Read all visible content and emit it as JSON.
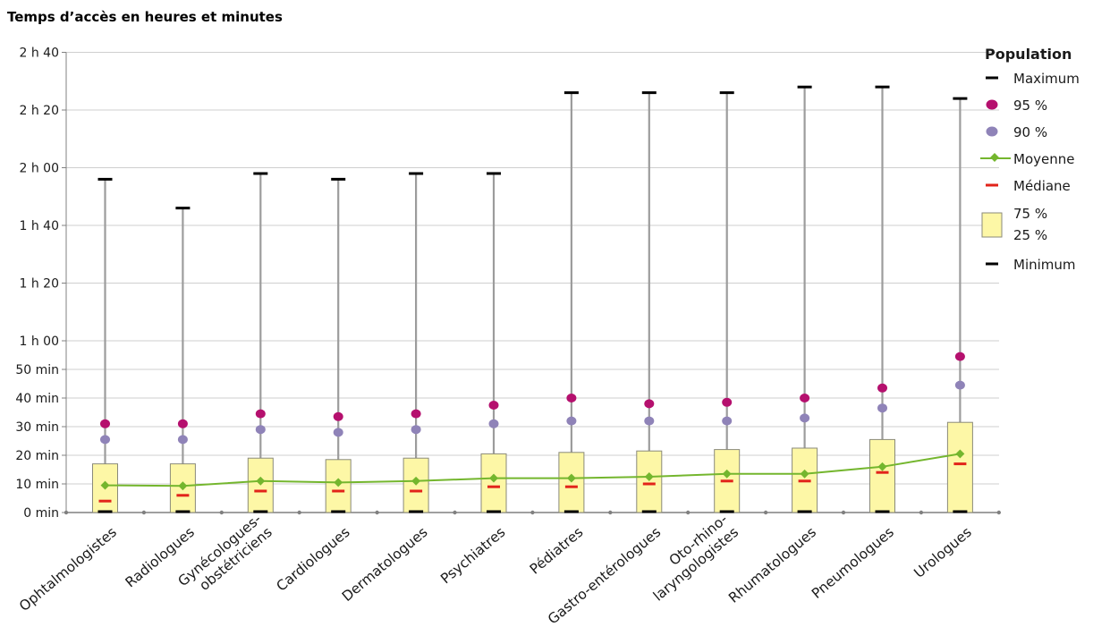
{
  "chart_data": {
    "type": "boxplot",
    "title": "Temps d’accès en heures et minutes",
    "ylabel": "",
    "xlabel": "",
    "ylim": [
      0,
      160
    ],
    "y_ticks": [
      0,
      10,
      20,
      30,
      40,
      50,
      60,
      80,
      100,
      120,
      140,
      160
    ],
    "y_tick_labels": [
      "0 min",
      "10 min",
      "20 min",
      "30 min",
      "40 min",
      "50 min",
      "1 h 00",
      "1 h 20",
      "1 h 40",
      "2 h 00",
      "2 h 20",
      "2 h 40"
    ],
    "grid": true,
    "legend_position": "right",
    "legend": {
      "title": "Population",
      "items": {
        "max": "Maximum",
        "p95": "95 %",
        "p90": "90 %",
        "mean": "Moyenne",
        "median": "Médiane",
        "p75": "75 %",
        "p25": "25 %",
        "min": "Minimum"
      }
    },
    "colors": {
      "whisker": "#9c9c9c",
      "box_fill": "#fdf7a6",
      "box_stroke": "#8a8a7a",
      "mean": "#74b62e",
      "median": "#e2231a",
      "p95": "#b5106e",
      "p90": "#8f83b8",
      "minmax": "#000000",
      "grid": "#cfcfcf"
    },
    "categories": [
      [
        "Ophtalmologistes"
      ],
      [
        "Radiologues"
      ],
      [
        "Gynécologues-",
        "obstétriciens"
      ],
      [
        "Cardiologues"
      ],
      [
        "Dermatologues"
      ],
      [
        "Psychiatres"
      ],
      [
        "Pédiatres"
      ],
      [
        "Gastro-entérologues"
      ],
      [
        "Oto-rhino-",
        "laryngologistes"
      ],
      [
        "Rhumatologues"
      ],
      [
        "Pneumologues"
      ],
      [
        "Urologues"
      ]
    ],
    "series": {
      "min": [
        0,
        0,
        0,
        0,
        0,
        0,
        0,
        0,
        0,
        0,
        0,
        0
      ],
      "p25": [
        0,
        0,
        0,
        0,
        0,
        0,
        0,
        0,
        0,
        0,
        0,
        0
      ],
      "median": [
        4,
        6,
        7.5,
        7.5,
        7.5,
        9,
        9,
        10,
        11,
        11,
        14,
        17
      ],
      "mean": [
        9.5,
        9.3,
        11,
        10.5,
        11,
        12,
        12,
        12.5,
        13.5,
        13.5,
        16,
        20.5
      ],
      "p75": [
        17,
        17,
        19,
        18.5,
        19,
        20.5,
        21,
        21.5,
        22,
        22.5,
        25.5,
        31.5
      ],
      "p90": [
        25.5,
        25.5,
        29,
        28,
        29,
        31,
        32,
        32,
        32,
        33,
        36.5,
        44.5
      ],
      "p95": [
        31,
        31,
        34.5,
        33.5,
        34.5,
        37.5,
        40,
        38,
        38.5,
        40,
        43.5,
        54.5
      ],
      "max": [
        116,
        106,
        118,
        116,
        118,
        118,
        146,
        146,
        146,
        148,
        148,
        144
      ]
    }
  }
}
